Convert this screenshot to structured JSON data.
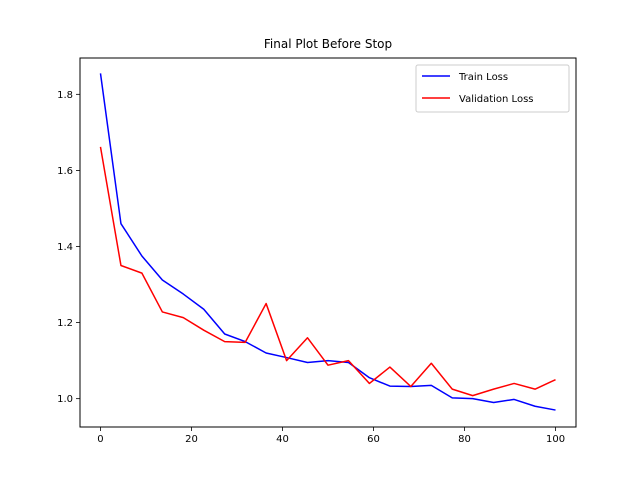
{
  "chart_data": {
    "type": "line",
    "title": "Final Plot Before Stop",
    "xlabel": "",
    "ylabel": "",
    "xlim": [
      -4.5,
      104.5
    ],
    "ylim": [
      0.9255,
      1.8955
    ],
    "xticks": [
      0,
      20,
      40,
      60,
      80,
      100
    ],
    "yticks": [
      1.0,
      1.2,
      1.4,
      1.6,
      1.8
    ],
    "grid": false,
    "legend_position": "top-right",
    "series": [
      {
        "name": "Train Loss",
        "color": "#0000ff",
        "x": [
          0,
          4.5,
          9.1,
          13.6,
          18.2,
          22.7,
          27.3,
          31.8,
          36.4,
          40.9,
          45.5,
          50.0,
          54.5,
          59.1,
          63.6,
          68.2,
          72.7,
          77.3,
          81.8,
          86.4,
          90.9,
          95.5,
          100
        ],
        "y": [
          1.855,
          1.46,
          1.375,
          1.312,
          1.275,
          1.235,
          1.17,
          1.15,
          1.12,
          1.108,
          1.095,
          1.1,
          1.095,
          1.055,
          1.033,
          1.032,
          1.035,
          1.002,
          1.0,
          0.99,
          0.998,
          0.98,
          0.97
        ]
      },
      {
        "name": "Validation Loss",
        "color": "#ff0000",
        "x": [
          0,
          4.5,
          9.1,
          13.6,
          18.2,
          22.7,
          27.3,
          31.8,
          36.4,
          40.9,
          45.5,
          50.0,
          54.5,
          59.1,
          63.6,
          68.2,
          72.7,
          77.3,
          81.8,
          86.4,
          90.9,
          95.5,
          100
        ],
        "y": [
          1.662,
          1.35,
          1.33,
          1.228,
          1.213,
          1.18,
          1.15,
          1.148,
          1.25,
          1.1,
          1.16,
          1.088,
          1.1,
          1.04,
          1.083,
          1.032,
          1.093,
          1.025,
          1.008,
          1.025,
          1.04,
          1.025,
          1.05
        ]
      }
    ]
  }
}
